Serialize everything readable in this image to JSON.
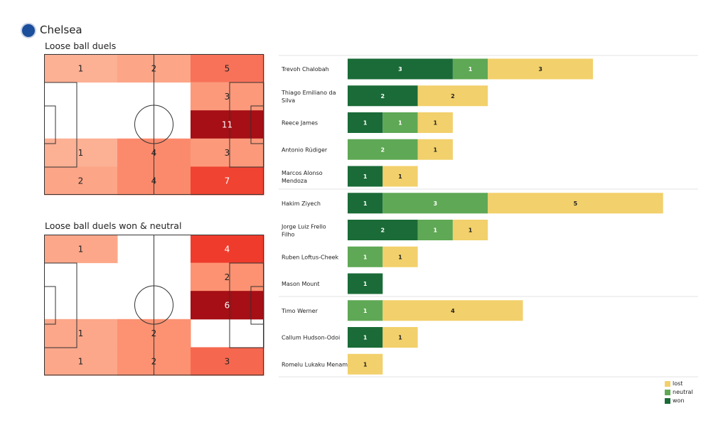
{
  "team": "Chelsea",
  "colors": {
    "won": "#1a6b37",
    "neutral": "#5fa855",
    "lost": "#f2d06b"
  },
  "chart_data": [
    {
      "type": "heatmap",
      "title": "Loose ball duels",
      "grid": [
        [
          1,
          2,
          5
        ],
        [
          null,
          null,
          3
        ],
        [
          null,
          null,
          11
        ],
        [
          1,
          4,
          3
        ],
        [
          2,
          4,
          7
        ]
      ]
    },
    {
      "type": "heatmap",
      "title": "Loose ball duels won & neutral",
      "grid": [
        [
          1,
          null,
          4
        ],
        [
          null,
          null,
          2
        ],
        [
          null,
          null,
          6
        ],
        [
          1,
          2,
          null
        ],
        [
          1,
          2,
          3
        ]
      ]
    },
    {
      "type": "bar",
      "stacked": true,
      "orientation": "horizontal",
      "legend": [
        "lost",
        "neutral",
        "won"
      ],
      "legend_position": "bottom-right",
      "players": [
        {
          "name": "Trevoh Chalobah",
          "won": 3,
          "neutral": 1,
          "lost": 3
        },
        {
          "name": "Thiago Emiliano da Silva",
          "won": 2,
          "neutral": 0,
          "lost": 2
        },
        {
          "name": "Reece James",
          "won": 1,
          "neutral": 1,
          "lost": 1
        },
        {
          "name": "Antonio Rüdiger",
          "won": 0,
          "neutral": 2,
          "lost": 1
        },
        {
          "name": "Marcos  Alonso Mendoza",
          "won": 1,
          "neutral": 0,
          "lost": 1
        },
        {
          "name": "Hakim Ziyech",
          "won": 1,
          "neutral": 3,
          "lost": 5
        },
        {
          "name": "Jorge Luiz Frello Filho",
          "won": 2,
          "neutral": 1,
          "lost": 1
        },
        {
          "name": "Ruben Loftus-Cheek",
          "won": 0,
          "neutral": 1,
          "lost": 1
        },
        {
          "name": "Mason Mount",
          "won": 1,
          "neutral": 0,
          "lost": 0
        },
        {
          "name": "Timo Werner",
          "won": 0,
          "neutral": 1,
          "lost": 4
        },
        {
          "name": "Callum Hudson-Odoi",
          "won": 1,
          "neutral": 0,
          "lost": 1
        },
        {
          "name": "Romelu Lukaku Menama",
          "won": 0,
          "neutral": 0,
          "lost": 1
        }
      ]
    }
  ]
}
